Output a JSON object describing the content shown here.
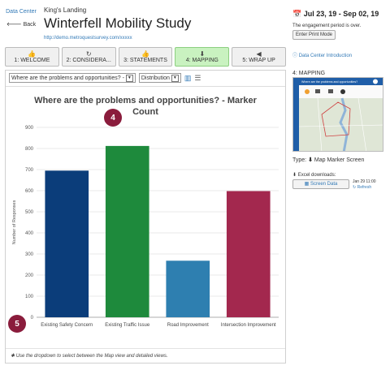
{
  "nav": {
    "data_center": "Data Center",
    "back": "Back"
  },
  "project": {
    "subtitle": "King's Landing",
    "title": "Winterfell Mobility Study",
    "url": "http://demo.metroquestsurvey.com/xxxxx"
  },
  "tabs": [
    {
      "label": "1: WELCOME",
      "icon": "👍",
      "active": false
    },
    {
      "label": "2: CONSIDERA...",
      "icon": "↻",
      "active": false
    },
    {
      "label": "3: STATEMENTS",
      "icon": "👍",
      "active": false
    },
    {
      "label": "4: MAPPING",
      "icon": "⬇",
      "active": true
    },
    {
      "label": "5: WRAP UP",
      "icon": "◀",
      "active": false
    }
  ],
  "controls": {
    "question_select": "Where are the problems and opportunities? -",
    "view_select": "Distribution"
  },
  "chart_data": {
    "type": "bar",
    "title": "Where are the problems and opportunities? - Marker Count",
    "ylabel": "Number of Responses",
    "xlabel": "",
    "ylim": [
      0,
      900
    ],
    "yticks": [
      0,
      100,
      200,
      300,
      400,
      500,
      600,
      700,
      800,
      900
    ],
    "grid": true,
    "categories": [
      "Existing Safety Concern",
      "Existing Traffic Issue",
      "Road Improvement",
      "Intersection Improvement"
    ],
    "values": [
      695,
      812,
      268,
      598
    ],
    "colors": [
      "#0b3d7a",
      "#1e8a3c",
      "#2e7fb0",
      "#a3284e"
    ]
  },
  "badges": {
    "b4": "4",
    "b5": "5"
  },
  "footnote": "Use the dropdown to select between the Map view and detailed views.",
  "sidebar": {
    "dates": "Jul 23, 19 - Sep 02, 19",
    "period_text": "The engagement period is over.",
    "print_button": "Enter Print Mode",
    "intro_link": "Data Center Introduction",
    "mapping_label": "4: MAPPING",
    "thumb_title": "Where are the problems and opportunities?",
    "type_label": "Type:",
    "type_value": "Map Marker Screen",
    "excel_label": "Excel downloads:",
    "screen_data_button": "Screen Data",
    "timestamp": "Jan 29 11:00",
    "refresh": "Refresh"
  }
}
